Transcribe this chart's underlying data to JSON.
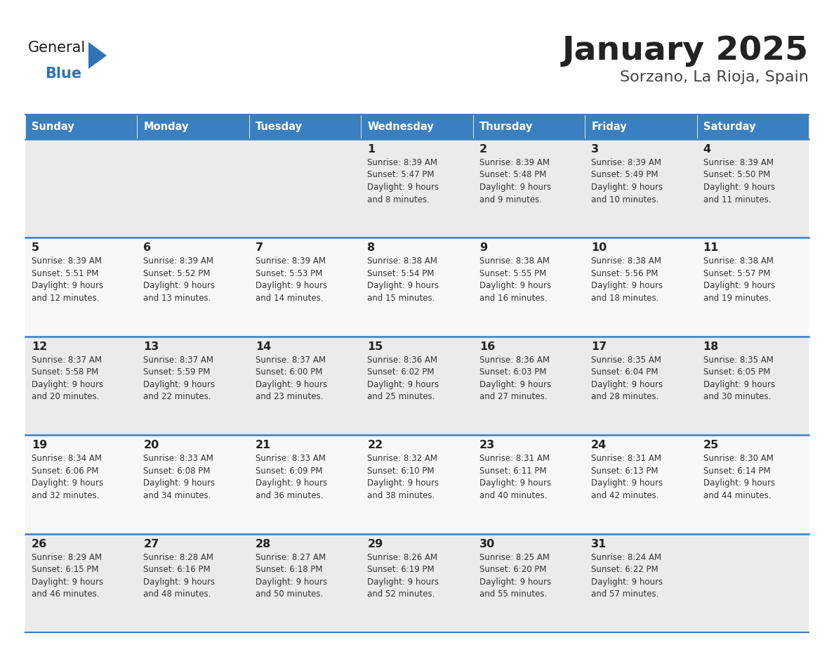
{
  "title": "January 2025",
  "subtitle": "Sorzano, La Rioja, Spain",
  "header_bg": "#3a7fc1",
  "header_text_color": "#ffffff",
  "cell_bg_even": "#ebebeb",
  "cell_bg_odd": "#f7f7f7",
  "day_names": [
    "Sunday",
    "Monday",
    "Tuesday",
    "Wednesday",
    "Thursday",
    "Friday",
    "Saturday"
  ],
  "grid_line_color": "#3a7fc1",
  "day_number_color": "#222222",
  "cell_text_color": "#333333",
  "title_color": "#222222",
  "subtitle_color": "#444444",
  "calendar": [
    [
      {
        "day": null,
        "sunrise": null,
        "sunset": null,
        "daylight_line1": null,
        "daylight_line2": null
      },
      {
        "day": null,
        "sunrise": null,
        "sunset": null,
        "daylight_line1": null,
        "daylight_line2": null
      },
      {
        "day": null,
        "sunrise": null,
        "sunset": null,
        "daylight_line1": null,
        "daylight_line2": null
      },
      {
        "day": 1,
        "sunrise": "Sunrise: 8:39 AM",
        "sunset": "Sunset: 5:47 PM",
        "daylight_line1": "Daylight: 9 hours",
        "daylight_line2": "and 8 minutes."
      },
      {
        "day": 2,
        "sunrise": "Sunrise: 8:39 AM",
        "sunset": "Sunset: 5:48 PM",
        "daylight_line1": "Daylight: 9 hours",
        "daylight_line2": "and 9 minutes."
      },
      {
        "day": 3,
        "sunrise": "Sunrise: 8:39 AM",
        "sunset": "Sunset: 5:49 PM",
        "daylight_line1": "Daylight: 9 hours",
        "daylight_line2": "and 10 minutes."
      },
      {
        "day": 4,
        "sunrise": "Sunrise: 8:39 AM",
        "sunset": "Sunset: 5:50 PM",
        "daylight_line1": "Daylight: 9 hours",
        "daylight_line2": "and 11 minutes."
      }
    ],
    [
      {
        "day": 5,
        "sunrise": "Sunrise: 8:39 AM",
        "sunset": "Sunset: 5:51 PM",
        "daylight_line1": "Daylight: 9 hours",
        "daylight_line2": "and 12 minutes."
      },
      {
        "day": 6,
        "sunrise": "Sunrise: 8:39 AM",
        "sunset": "Sunset: 5:52 PM",
        "daylight_line1": "Daylight: 9 hours",
        "daylight_line2": "and 13 minutes."
      },
      {
        "day": 7,
        "sunrise": "Sunrise: 8:39 AM",
        "sunset": "Sunset: 5:53 PM",
        "daylight_line1": "Daylight: 9 hours",
        "daylight_line2": "and 14 minutes."
      },
      {
        "day": 8,
        "sunrise": "Sunrise: 8:38 AM",
        "sunset": "Sunset: 5:54 PM",
        "daylight_line1": "Daylight: 9 hours",
        "daylight_line2": "and 15 minutes."
      },
      {
        "day": 9,
        "sunrise": "Sunrise: 8:38 AM",
        "sunset": "Sunset: 5:55 PM",
        "daylight_line1": "Daylight: 9 hours",
        "daylight_line2": "and 16 minutes."
      },
      {
        "day": 10,
        "sunrise": "Sunrise: 8:38 AM",
        "sunset": "Sunset: 5:56 PM",
        "daylight_line1": "Daylight: 9 hours",
        "daylight_line2": "and 18 minutes."
      },
      {
        "day": 11,
        "sunrise": "Sunrise: 8:38 AM",
        "sunset": "Sunset: 5:57 PM",
        "daylight_line1": "Daylight: 9 hours",
        "daylight_line2": "and 19 minutes."
      }
    ],
    [
      {
        "day": 12,
        "sunrise": "Sunrise: 8:37 AM",
        "sunset": "Sunset: 5:58 PM",
        "daylight_line1": "Daylight: 9 hours",
        "daylight_line2": "and 20 minutes."
      },
      {
        "day": 13,
        "sunrise": "Sunrise: 8:37 AM",
        "sunset": "Sunset: 5:59 PM",
        "daylight_line1": "Daylight: 9 hours",
        "daylight_line2": "and 22 minutes."
      },
      {
        "day": 14,
        "sunrise": "Sunrise: 8:37 AM",
        "sunset": "Sunset: 6:00 PM",
        "daylight_line1": "Daylight: 9 hours",
        "daylight_line2": "and 23 minutes."
      },
      {
        "day": 15,
        "sunrise": "Sunrise: 8:36 AM",
        "sunset": "Sunset: 6:02 PM",
        "daylight_line1": "Daylight: 9 hours",
        "daylight_line2": "and 25 minutes."
      },
      {
        "day": 16,
        "sunrise": "Sunrise: 8:36 AM",
        "sunset": "Sunset: 6:03 PM",
        "daylight_line1": "Daylight: 9 hours",
        "daylight_line2": "and 27 minutes."
      },
      {
        "day": 17,
        "sunrise": "Sunrise: 8:35 AM",
        "sunset": "Sunset: 6:04 PM",
        "daylight_line1": "Daylight: 9 hours",
        "daylight_line2": "and 28 minutes."
      },
      {
        "day": 18,
        "sunrise": "Sunrise: 8:35 AM",
        "sunset": "Sunset: 6:05 PM",
        "daylight_line1": "Daylight: 9 hours",
        "daylight_line2": "and 30 minutes."
      }
    ],
    [
      {
        "day": 19,
        "sunrise": "Sunrise: 8:34 AM",
        "sunset": "Sunset: 6:06 PM",
        "daylight_line1": "Daylight: 9 hours",
        "daylight_line2": "and 32 minutes."
      },
      {
        "day": 20,
        "sunrise": "Sunrise: 8:33 AM",
        "sunset": "Sunset: 6:08 PM",
        "daylight_line1": "Daylight: 9 hours",
        "daylight_line2": "and 34 minutes."
      },
      {
        "day": 21,
        "sunrise": "Sunrise: 8:33 AM",
        "sunset": "Sunset: 6:09 PM",
        "daylight_line1": "Daylight: 9 hours",
        "daylight_line2": "and 36 minutes."
      },
      {
        "day": 22,
        "sunrise": "Sunrise: 8:32 AM",
        "sunset": "Sunset: 6:10 PM",
        "daylight_line1": "Daylight: 9 hours",
        "daylight_line2": "and 38 minutes."
      },
      {
        "day": 23,
        "sunrise": "Sunrise: 8:31 AM",
        "sunset": "Sunset: 6:11 PM",
        "daylight_line1": "Daylight: 9 hours",
        "daylight_line2": "and 40 minutes."
      },
      {
        "day": 24,
        "sunrise": "Sunrise: 8:31 AM",
        "sunset": "Sunset: 6:13 PM",
        "daylight_line1": "Daylight: 9 hours",
        "daylight_line2": "and 42 minutes."
      },
      {
        "day": 25,
        "sunrise": "Sunrise: 8:30 AM",
        "sunset": "Sunset: 6:14 PM",
        "daylight_line1": "Daylight: 9 hours",
        "daylight_line2": "and 44 minutes."
      }
    ],
    [
      {
        "day": 26,
        "sunrise": "Sunrise: 8:29 AM",
        "sunset": "Sunset: 6:15 PM",
        "daylight_line1": "Daylight: 9 hours",
        "daylight_line2": "and 46 minutes."
      },
      {
        "day": 27,
        "sunrise": "Sunrise: 8:28 AM",
        "sunset": "Sunset: 6:16 PM",
        "daylight_line1": "Daylight: 9 hours",
        "daylight_line2": "and 48 minutes."
      },
      {
        "day": 28,
        "sunrise": "Sunrise: 8:27 AM",
        "sunset": "Sunset: 6:18 PM",
        "daylight_line1": "Daylight: 9 hours",
        "daylight_line2": "and 50 minutes."
      },
      {
        "day": 29,
        "sunrise": "Sunrise: 8:26 AM",
        "sunset": "Sunset: 6:19 PM",
        "daylight_line1": "Daylight: 9 hours",
        "daylight_line2": "and 52 minutes."
      },
      {
        "day": 30,
        "sunrise": "Sunrise: 8:25 AM",
        "sunset": "Sunset: 6:20 PM",
        "daylight_line1": "Daylight: 9 hours",
        "daylight_line2": "and 55 minutes."
      },
      {
        "day": 31,
        "sunrise": "Sunrise: 8:24 AM",
        "sunset": "Sunset: 6:22 PM",
        "daylight_line1": "Daylight: 9 hours",
        "daylight_line2": "and 57 minutes."
      },
      {
        "day": null,
        "sunrise": null,
        "sunset": null,
        "daylight_line1": null,
        "daylight_line2": null
      }
    ]
  ],
  "logo_color_general": "#1a1a1a",
  "logo_color_blue": "#2e74b5",
  "logo_triangle_color": "#2e74b5",
  "fig_width": 11.88,
  "fig_height": 9.18,
  "dpi": 100
}
